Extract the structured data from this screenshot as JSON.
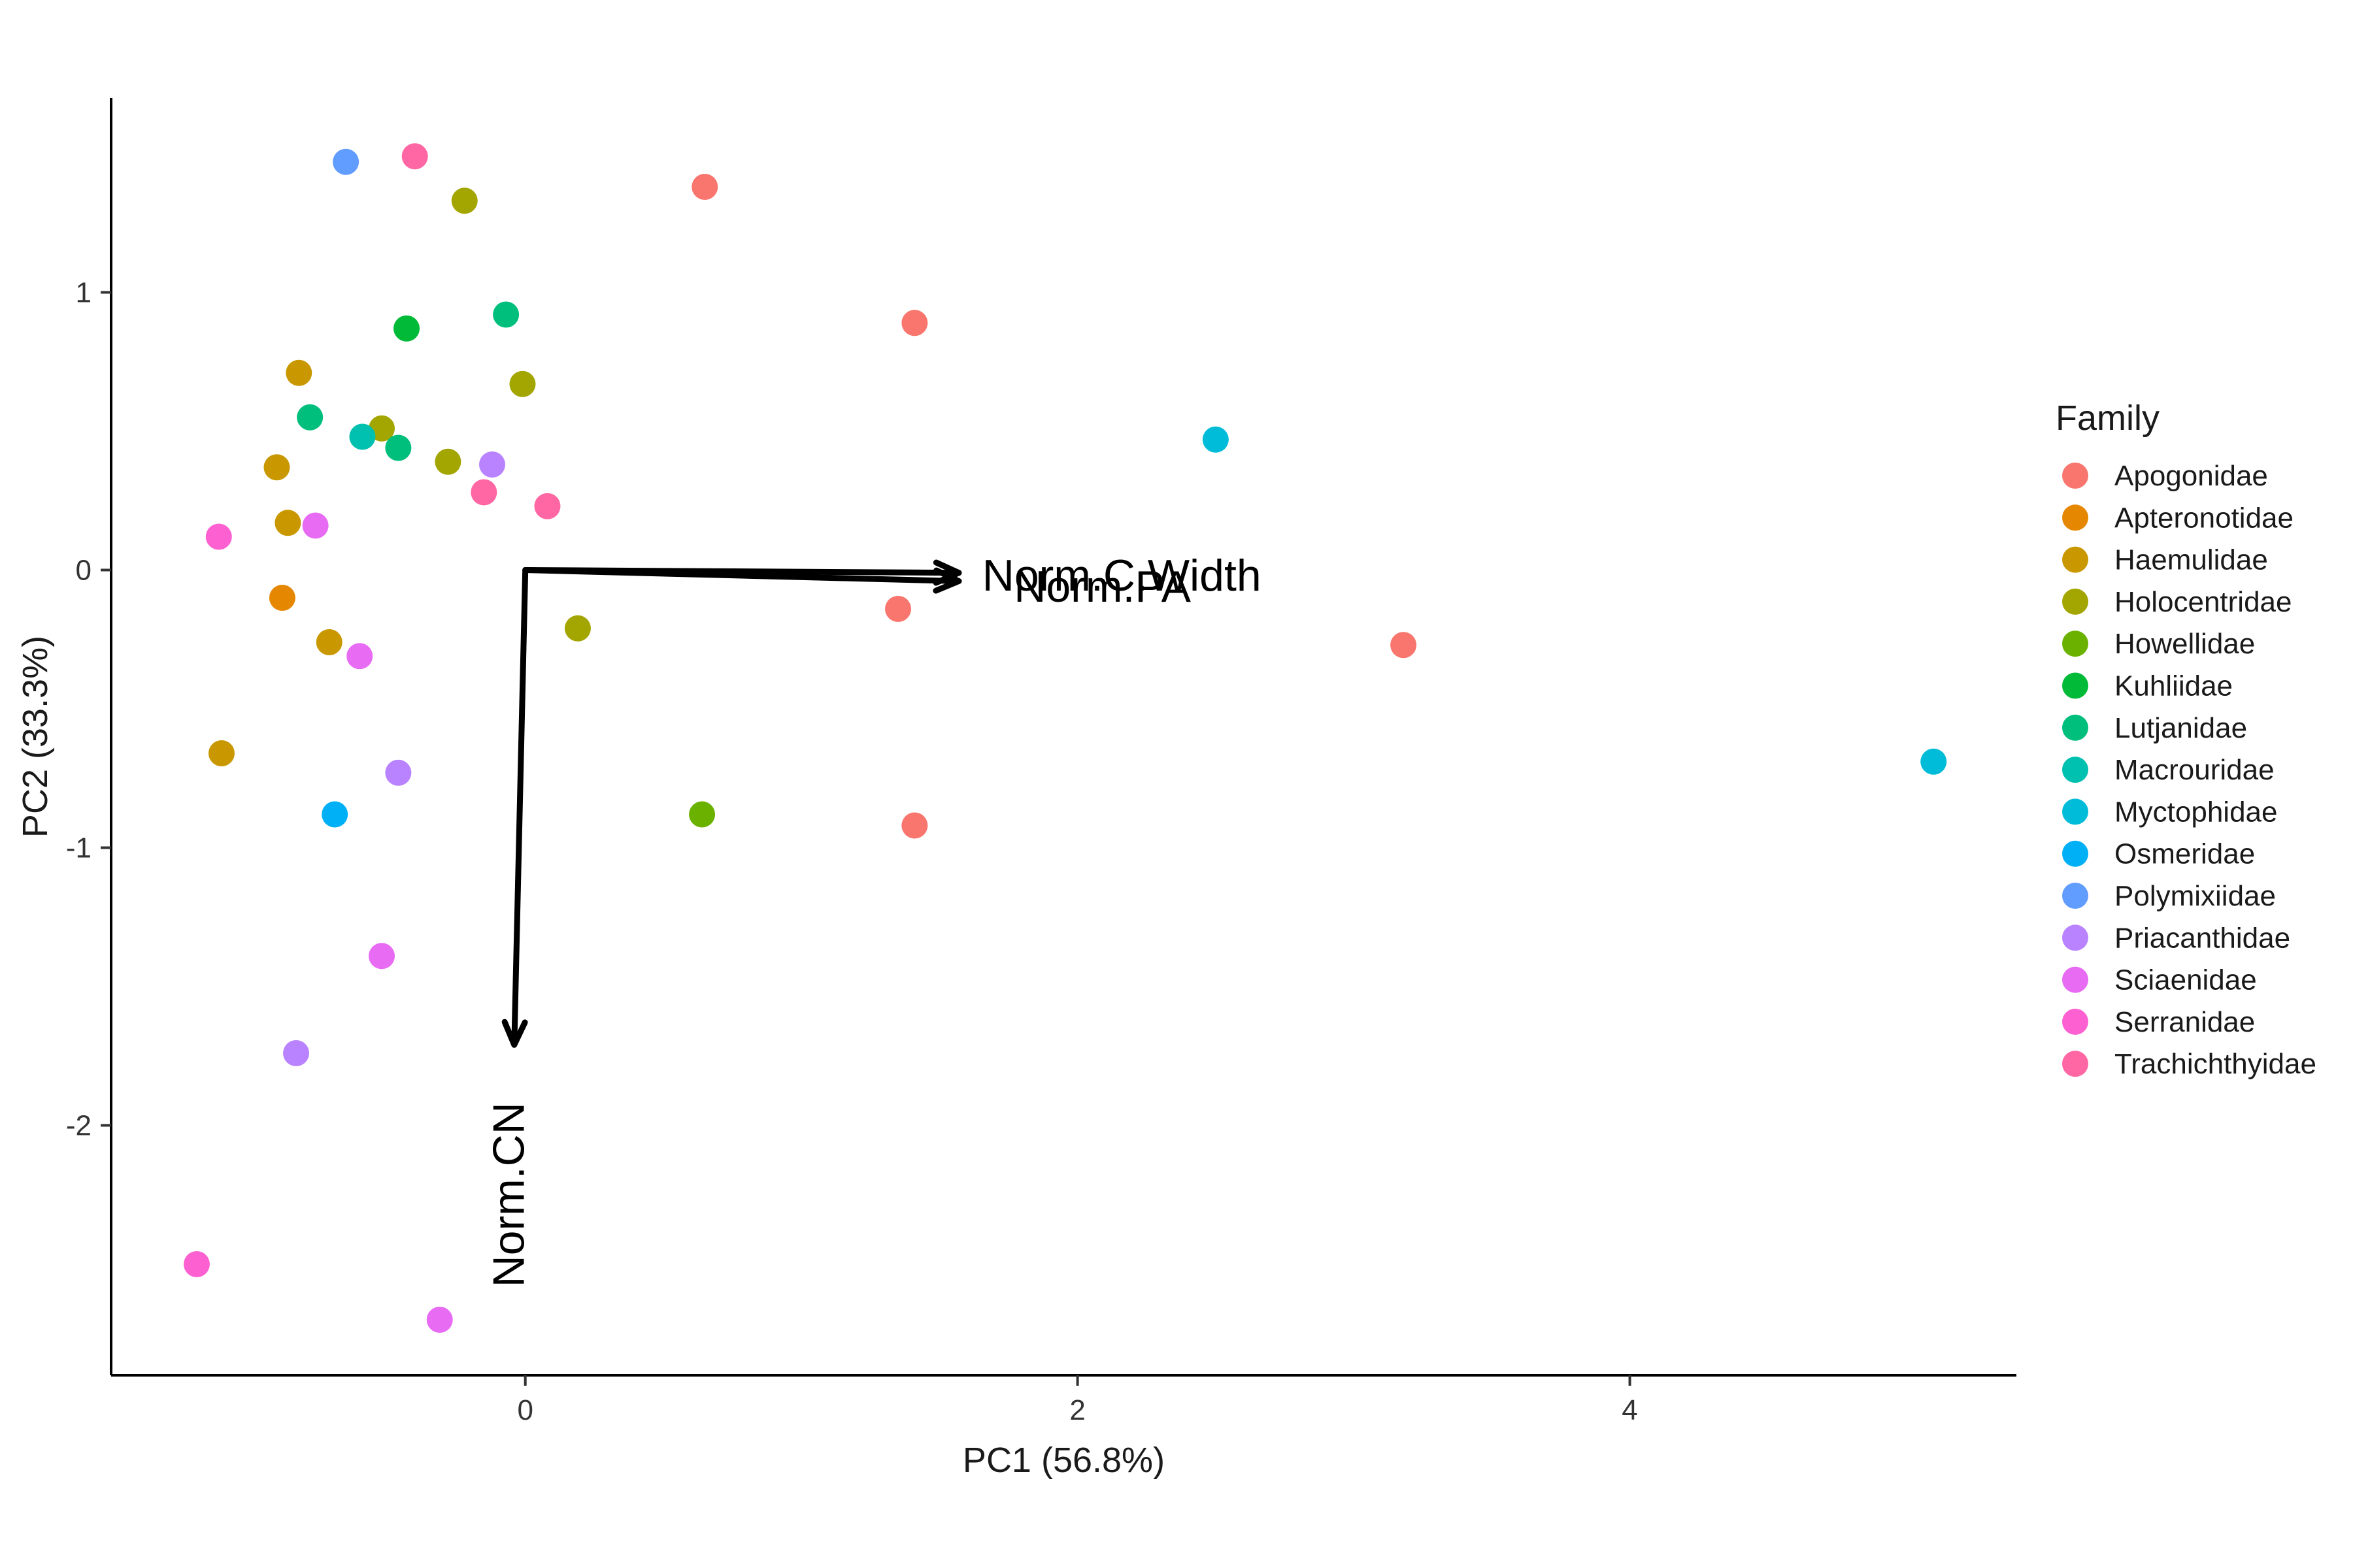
{
  "chart_data": {
    "type": "scatter",
    "title": "",
    "xlabel": "PC1 (56.8%)",
    "ylabel": "PC2 (33.3%)",
    "xlim": [
      -1.5,
      5.4
    ],
    "ylim": [
      -2.9,
      1.7
    ],
    "x_ticks": [
      0,
      2,
      4
    ],
    "y_ticks": [
      1,
      0,
      -1,
      -2
    ],
    "grid": false,
    "legend": {
      "title": "Family",
      "position": "right"
    },
    "series": [
      {
        "name": "Apogonidae",
        "color": "#F8766D",
        "points": [
          [
            0.65,
            1.38
          ],
          [
            1.41,
            0.89
          ],
          [
            1.35,
            -0.14
          ],
          [
            3.18,
            -0.27
          ],
          [
            1.41,
            -0.92
          ]
        ]
      },
      {
        "name": "Apteronotidae",
        "color": "#E58700",
        "points": [
          [
            -0.88,
            -0.1
          ]
        ]
      },
      {
        "name": "Haemulidae",
        "color": "#C99800",
        "points": [
          [
            -0.82,
            0.71
          ],
          [
            -0.9,
            0.37
          ],
          [
            -0.86,
            0.17
          ],
          [
            -0.71,
            -0.26
          ],
          [
            -1.1,
            -0.66
          ]
        ]
      },
      {
        "name": "Holocentridae",
        "color": "#A3A500",
        "points": [
          [
            -0.22,
            1.33
          ],
          [
            -0.52,
            0.51
          ],
          [
            -0.28,
            0.39
          ],
          [
            -0.01,
            0.67
          ],
          [
            0.19,
            -0.21
          ]
        ]
      },
      {
        "name": "Howellidae",
        "color": "#6BB100",
        "points": [
          [
            0.64,
            -0.88
          ]
        ]
      },
      {
        "name": "Kuhliidae",
        "color": "#00BA38",
        "points": [
          [
            -0.43,
            0.87
          ]
        ]
      },
      {
        "name": "Lutjanidae",
        "color": "#00BF7D",
        "points": [
          [
            -0.07,
            0.92
          ],
          [
            -0.78,
            0.55
          ],
          [
            -0.46,
            0.44
          ]
        ]
      },
      {
        "name": "Macrouridae",
        "color": "#00C0AF",
        "points": [
          [
            -0.59,
            0.48
          ]
        ]
      },
      {
        "name": "Myctophidae",
        "color": "#00BCD8",
        "points": [
          [
            2.5,
            0.47
          ],
          [
            5.1,
            -0.69
          ]
        ]
      },
      {
        "name": "Osmeridae",
        "color": "#00B0F6",
        "points": [
          [
            -0.69,
            -0.88
          ]
        ]
      },
      {
        "name": "Polymixiidae",
        "color": "#619CFF",
        "points": [
          [
            -0.65,
            1.47
          ]
        ]
      },
      {
        "name": "Priacanthidae",
        "color": "#B983FF",
        "points": [
          [
            -0.12,
            0.38
          ],
          [
            -0.46,
            -0.73
          ],
          [
            -0.83,
            -1.74
          ]
        ]
      },
      {
        "name": "Sciaenidae",
        "color": "#E76BF3",
        "points": [
          [
            -0.76,
            0.16
          ],
          [
            -0.6,
            -0.31
          ],
          [
            -0.52,
            -1.39
          ],
          [
            -0.31,
            -2.7
          ]
        ]
      },
      {
        "name": "Serranidae",
        "color": "#FD61D1",
        "points": [
          [
            -1.11,
            0.12
          ],
          [
            -1.19,
            -2.5
          ]
        ]
      },
      {
        "name": "Trachichthyidae",
        "color": "#FF67A4",
        "points": [
          [
            -0.4,
            1.49
          ],
          [
            -0.15,
            0.28
          ],
          [
            0.08,
            0.23
          ]
        ]
      }
    ],
    "vectors": [
      {
        "label": "Norm.C.Width",
        "end": [
          1.57,
          -0.01
        ],
        "label_pos": [
          2.16,
          -0.02
        ]
      },
      {
        "label": "Norm.PA",
        "end": [
          1.57,
          -0.04
        ],
        "label_pos": [
          2.09,
          -0.06
        ]
      },
      {
        "label": "Norm.CN",
        "end": [
          -0.04,
          -1.71
        ],
        "label_pos": [
          -0.06,
          -2.25
        ]
      }
    ]
  }
}
